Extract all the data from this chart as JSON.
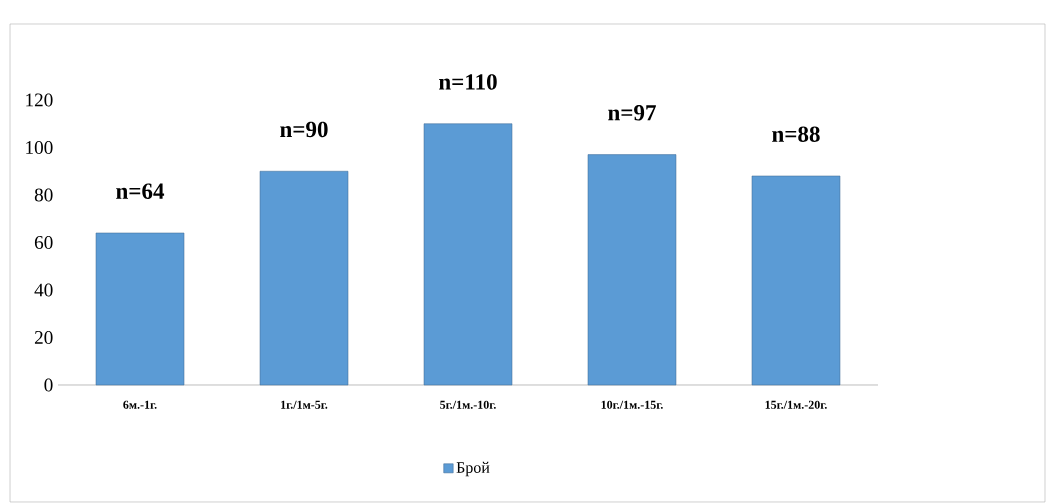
{
  "chart_data": {
    "type": "bar",
    "categories": [
      "6м.-1г.",
      "1г./1м-5г.",
      "5г./1м.-10г.",
      "10г./1м.-15г.",
      "15г./1м.-20г."
    ],
    "series": [
      {
        "name": "Брой",
        "color": "#5b9bd5",
        "values": [
          64,
          90,
          110,
          97,
          88
        ],
        "value_labels": [
          "n=64",
          "n=90",
          "n=110",
          "n=97",
          "n=88"
        ]
      }
    ],
    "ylim": [
      0,
      120
    ],
    "yticks": [
      0,
      20,
      40,
      60,
      80,
      100,
      120
    ],
    "grid": false,
    "legend": "bottom"
  }
}
